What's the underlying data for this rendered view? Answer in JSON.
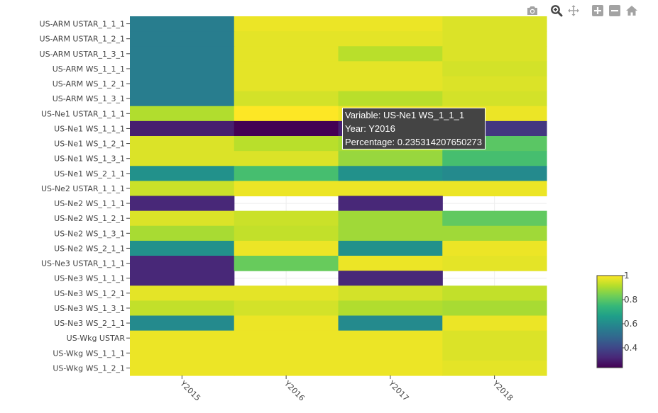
{
  "chart_data": {
    "type": "heatmap",
    "x": [
      "Y2015",
      "Y2016",
      "Y2017",
      "Y2018"
    ],
    "y": [
      "US-ARM USTAR_1_1_1",
      "US-ARM USTAR_1_2_1",
      "US-ARM USTAR_1_3_1",
      "US-ARM WS_1_1_1",
      "US-ARM WS_1_2_1",
      "US-ARM WS_1_3_1",
      "US-Ne1 USTAR_1_1_1",
      "US-Ne1 WS_1_1_1",
      "US-Ne1 WS_1_2_1",
      "US-Ne1 WS_1_3_1",
      "US-Ne1 WS_2_1_1",
      "US-Ne2 USTAR_1_1_1",
      "US-Ne2 WS_1_1_1",
      "US-Ne2 WS_1_2_1",
      "US-Ne2 WS_1_3_1",
      "US-Ne2 WS_2_1_1",
      "US-Ne3 USTAR_1_1_1",
      "US-Ne3 WS_1_1_1",
      "US-Ne3 WS_1_2_1",
      "US-Ne3 WS_1_3_1",
      "US-Ne3 WS_2_1_1",
      "US-Wkg USTAR",
      "US-Wkg WS_1_1_1",
      "US-Wkg WS_1_2_1"
    ],
    "z": [
      [
        0.56,
        0.98,
        0.98,
        0.96
      ],
      [
        0.56,
        0.97,
        0.97,
        0.96
      ],
      [
        0.56,
        0.97,
        0.92,
        0.96
      ],
      [
        0.56,
        0.97,
        0.97,
        0.95
      ],
      [
        0.56,
        0.97,
        0.97,
        0.96
      ],
      [
        0.56,
        0.95,
        0.92,
        0.95
      ],
      [
        0.91,
        1.0,
        0.98,
        0.98
      ],
      [
        0.3,
        0.235314207650273,
        0.3,
        0.36
      ],
      [
        0.96,
        0.92,
        0.9,
        0.8
      ],
      [
        0.96,
        0.96,
        0.88,
        0.77
      ],
      [
        0.62,
        0.77,
        0.62,
        0.6
      ],
      [
        0.94,
        0.98,
        0.98,
        0.98
      ],
      [
        0.32,
        null,
        0.32,
        null
      ],
      [
        0.96,
        0.94,
        0.89,
        0.81
      ],
      [
        0.9,
        0.93,
        0.89,
        0.89
      ],
      [
        0.62,
        0.98,
        0.62,
        0.98
      ],
      [
        0.32,
        0.82,
        0.98,
        0.97
      ],
      [
        0.32,
        null,
        0.32,
        null
      ],
      [
        0.97,
        0.97,
        0.95,
        0.93
      ],
      [
        0.93,
        0.95,
        0.91,
        0.9
      ],
      [
        0.6,
        0.98,
        0.6,
        0.98
      ],
      [
        0.98,
        0.98,
        0.98,
        0.96
      ],
      [
        0.98,
        0.98,
        0.98,
        0.96
      ],
      [
        0.98,
        0.98,
        0.98,
        0.97
      ]
    ],
    "zmin": 0.235314207650273,
    "zmax": 1.0,
    "colorscale": "Viridis",
    "colorbar_ticks": [
      "0.4",
      "0.6",
      "0.8",
      "1"
    ],
    "colorbar_tick_values": [
      0.4,
      0.6,
      0.8,
      1.0
    ],
    "grid": true,
    "title": "",
    "xlabel": "",
    "ylabel": ""
  },
  "hover": {
    "variable_line": "Variable: US-Ne1 WS_1_1_1",
    "year_line": "Year: Y2016",
    "percentage_line": "Percentage: 0.235314207650273"
  },
  "modebar": {
    "icons": [
      "camera-icon",
      "zoom-icon",
      "pan-icon",
      "zoom-in-icon",
      "zoom-out-icon",
      "home-icon"
    ],
    "active": "zoom-icon",
    "color": "#a3a3a3",
    "active_color": "#444444"
  }
}
